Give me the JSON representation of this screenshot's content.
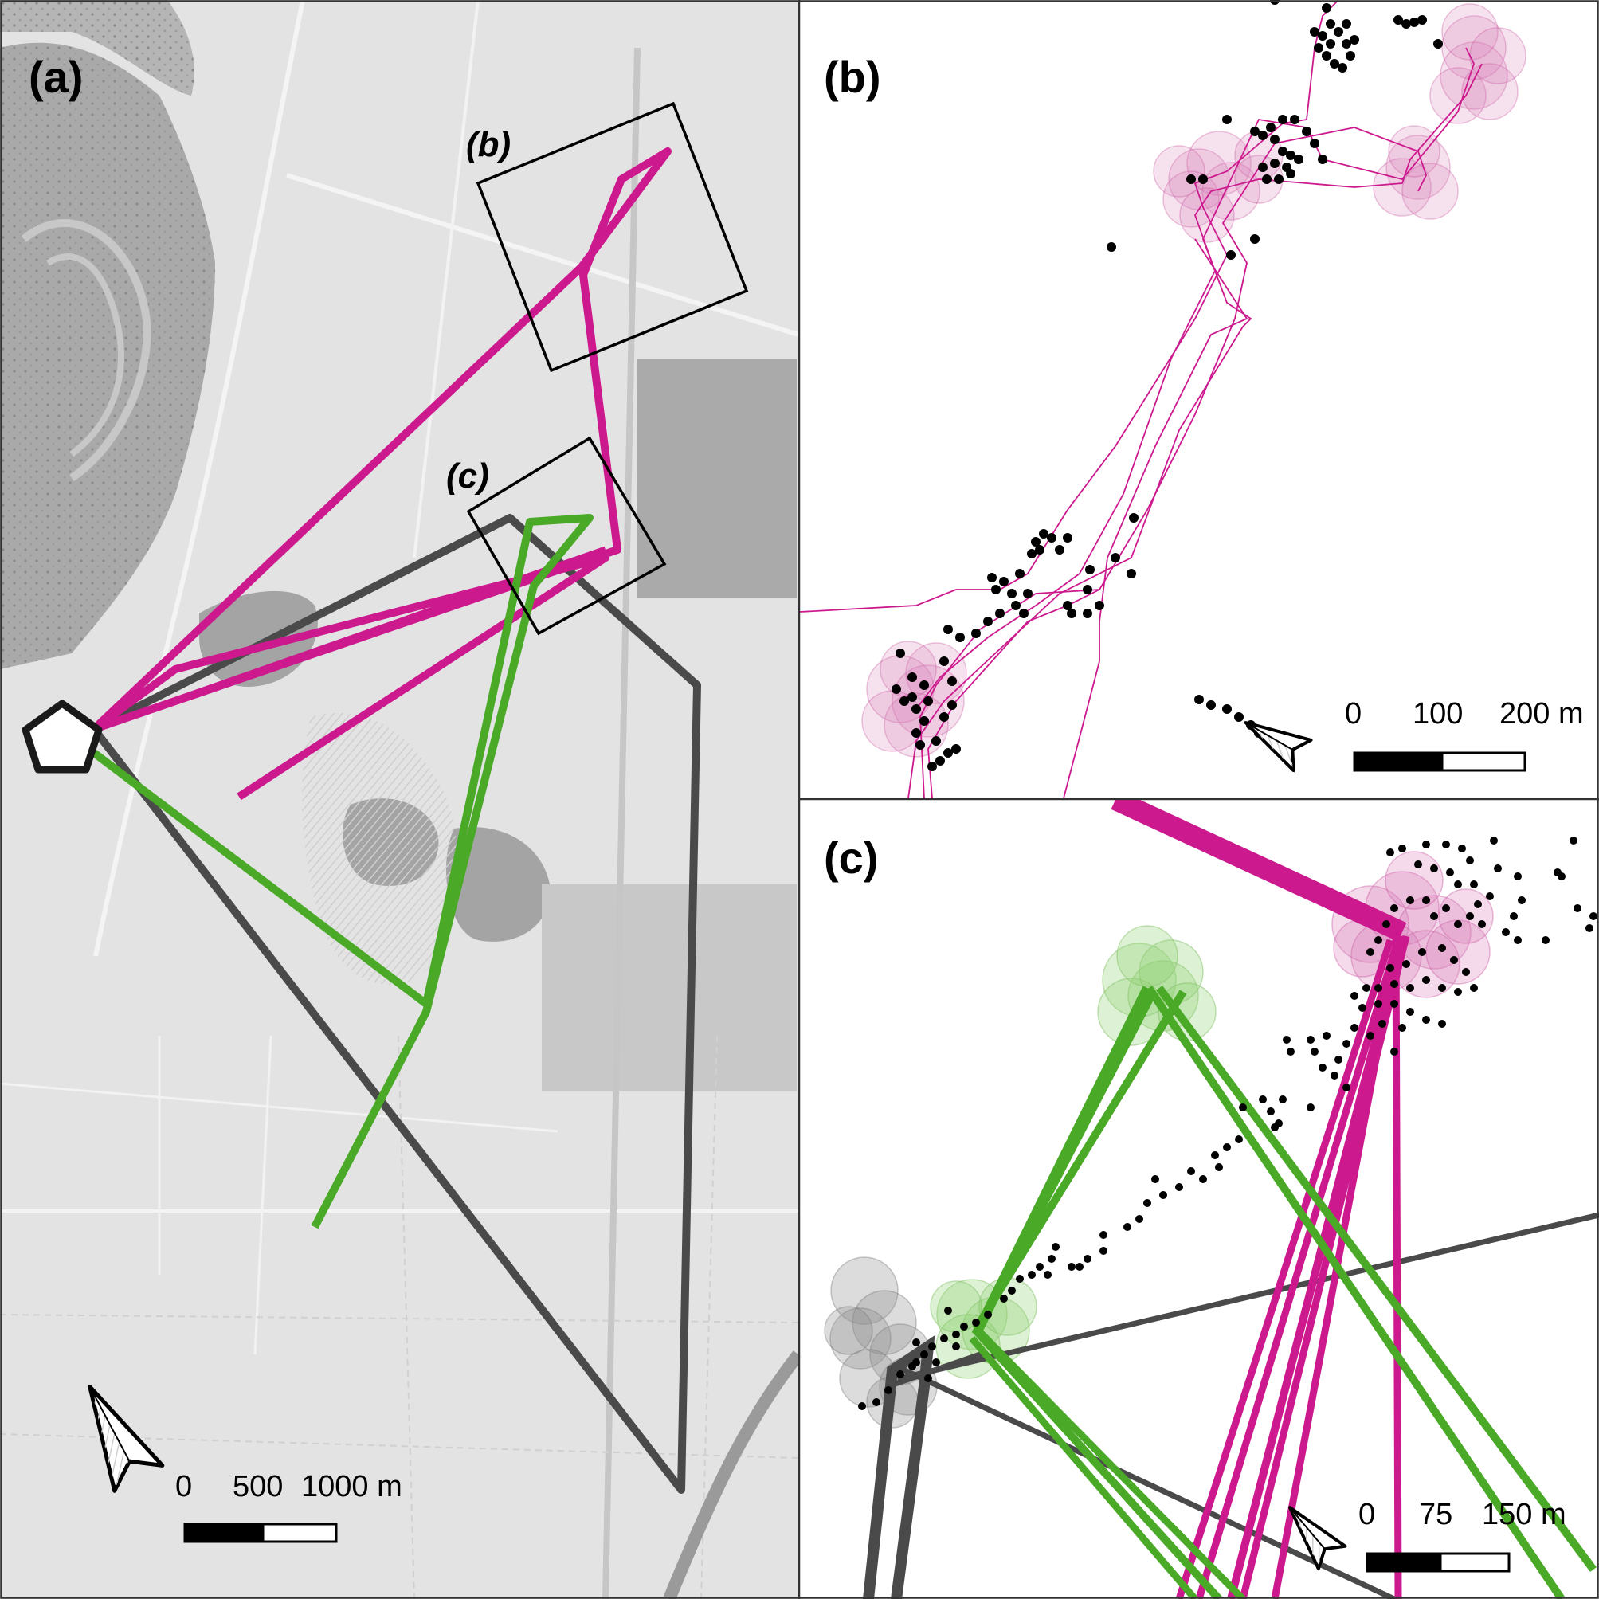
{
  "figure": {
    "panels": [
      {
        "id": "a",
        "label": "(a)",
        "inset_labels": [
          "(b)",
          "(c)"
        ]
      },
      {
        "id": "b",
        "label": "(b)"
      },
      {
        "id": "c",
        "label": "(c)"
      }
    ],
    "scale_bars": {
      "a": {
        "labels": [
          "0",
          "500",
          "1000 m"
        ]
      },
      "b": {
        "labels": [
          "0",
          "100",
          "200 m"
        ]
      },
      "c": {
        "labels": [
          "0",
          "75",
          "150 m"
        ]
      }
    },
    "north_arrow_icon": "north-arrow-icon",
    "colors": {
      "magenta_track": "#cc1a8e",
      "green_track": "#4aaa28",
      "gray_track": "#4a4a4a",
      "roost_marker": "#1a1a1a",
      "basemap": "#e2e2e2",
      "gps_fix": "#000000"
    }
  }
}
